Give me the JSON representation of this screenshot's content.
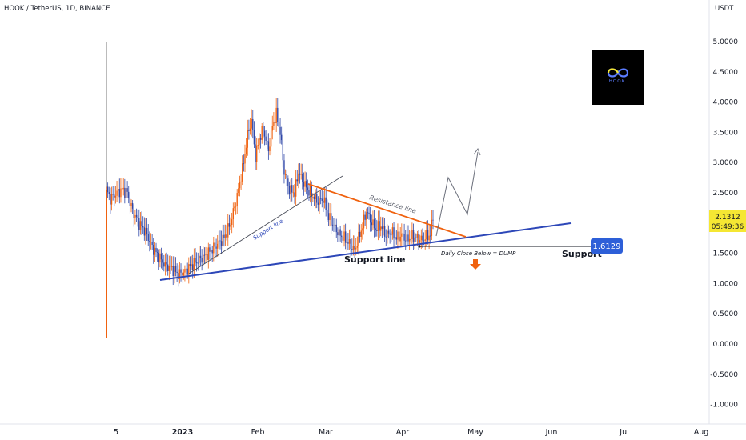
{
  "header": {
    "title": "HOOK / TetherUS, 1D, BINANCE",
    "currency": "USDT"
  },
  "chart_data": {
    "type": "candlestick",
    "y_ticks": [
      "5.0000",
      "4.5000",
      "4.0000",
      "3.5000",
      "3.0000",
      "2.5000",
      "2.0000",
      "1.5000",
      "1.0000",
      "0.5000",
      "0.0000",
      "-0.5000",
      "-1.0000"
    ],
    "y_tick_values": [
      5,
      4.5,
      4,
      3.5,
      3,
      2.5,
      2,
      1.5,
      1,
      0.5,
      0,
      -0.5,
      -1
    ],
    "x_labels": [
      "5",
      "2023",
      "Feb",
      "Mar",
      "Apr",
      "May",
      "Jun",
      "Jul",
      "Aug"
    ],
    "ylim": [
      -1.0,
      5.0
    ],
    "last_price": "2.1312",
    "countdown": "05:49:36",
    "support_price": "1.6129",
    "annotations": {
      "support_line_small": "Support line",
      "resistance_line": "Resistance line",
      "support_line_main": "Support line",
      "daily_close": "Daily Close Below = DUMP",
      "support_label": "Support"
    },
    "colors": {
      "up": "#f0620f",
      "down": "#2f47a8",
      "support_line": "#2d47b8",
      "resistance_line": "#f0620f",
      "price_tag": "#f5e733",
      "support_tag": "#2d5fd8",
      "arrow": "#f0620f"
    },
    "logo_text": "HOOK"
  }
}
